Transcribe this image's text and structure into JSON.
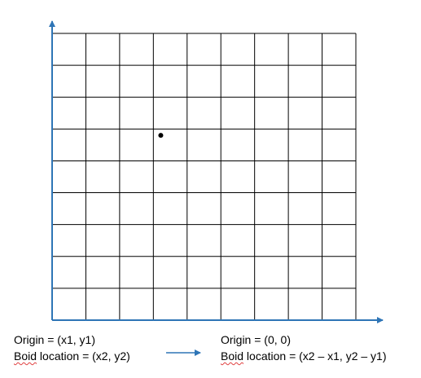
{
  "grid": {
    "columns": 9,
    "rows": 9,
    "line_color": "#000000"
  },
  "axes": {
    "color": "#2E75B6"
  },
  "point": {
    "col": 3.22,
    "row": 3.2,
    "color": "#000000"
  },
  "left_caption": {
    "origin": "Origin = (x1, y1)",
    "boid_word": "Boid",
    "boid_rest": " location = (x2, y2)"
  },
  "right_caption": {
    "origin": "Origin = (0, 0)",
    "boid_word": "Boid",
    "boid_rest": " location = (x2 – x1, y2 – y1)"
  },
  "arrow": {
    "color": "#2E75B6"
  }
}
